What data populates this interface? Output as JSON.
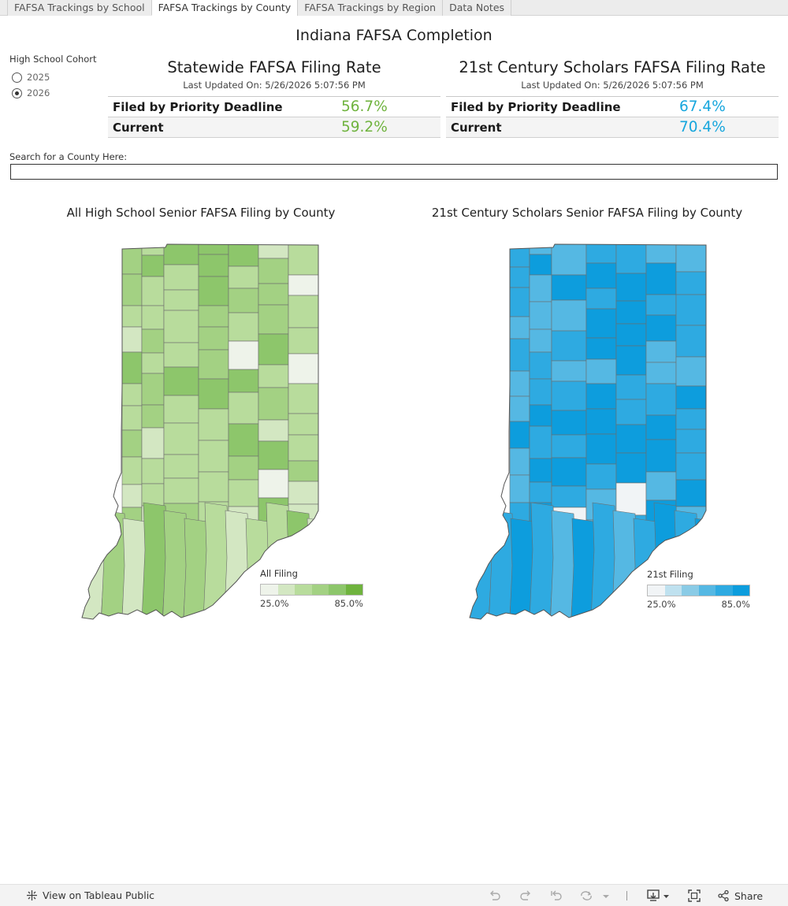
{
  "tabs": [
    {
      "label": "FAFSA Trackings by School",
      "active": false
    },
    {
      "label": "FAFSA Trackings by County",
      "active": true
    },
    {
      "label": "FAFSA Trackings by Region",
      "active": false
    },
    {
      "label": "Data Notes",
      "active": false
    }
  ],
  "dashboard": {
    "title": "Indiana FAFSA Completion"
  },
  "cohort": {
    "label": "High School Cohort",
    "options": [
      {
        "label": "2025",
        "selected": false
      },
      {
        "label": "2026",
        "selected": true
      }
    ]
  },
  "statewide": {
    "title": "Statewide FAFSA Filing Rate",
    "updated": "Last Updated On: 5/26/2026 5:07:56 PM",
    "rows": [
      {
        "label": "Filed by Priority Deadline",
        "value": "56.7%"
      },
      {
        "label": "Current",
        "value": "59.2%"
      }
    ],
    "value_color": "#6fb33e"
  },
  "scholars": {
    "title": "21st Century Scholars FAFSA Filing Rate",
    "updated": "Last Updated On: 5/26/2026 5:07:56 PM",
    "rows": [
      {
        "label": "Filed by Priority Deadline",
        "value": "67.4%"
      },
      {
        "label": "Current",
        "value": "70.4%"
      }
    ],
    "value_color": "#16a6dd"
  },
  "search": {
    "label": "Search for a County Here:",
    "value": ""
  },
  "maps": {
    "all": {
      "title": "All High School Senior FAFSA Filing by County",
      "legend_title": "All Filing",
      "legend_min": "25.0%",
      "legend_max": "85.0%",
      "palette": [
        "#eef3ea",
        "#d3e7c2",
        "#b8dc9c",
        "#a3d183",
        "#8dc66b",
        "#6fb33e"
      ]
    },
    "scholars": {
      "title": "21st Century Scholars Senior FAFSA Filing by County",
      "legend_title": "21st Filing",
      "legend_min": "25.0%",
      "legend_max": "85.0%",
      "palette": [
        "#f1f4f6",
        "#bfe1ef",
        "#8acbe6",
        "#55b8e3",
        "#2eaae1",
        "#0d9ddd"
      ]
    }
  },
  "footer": {
    "view_link": "View on Tableau Public",
    "share": "Share",
    "icons": [
      "undo-icon",
      "redo-icon",
      "revert-icon",
      "refresh-icon",
      "pause-dropdown-icon",
      "download-icon",
      "fullscreen-icon",
      "share-icon"
    ]
  }
}
